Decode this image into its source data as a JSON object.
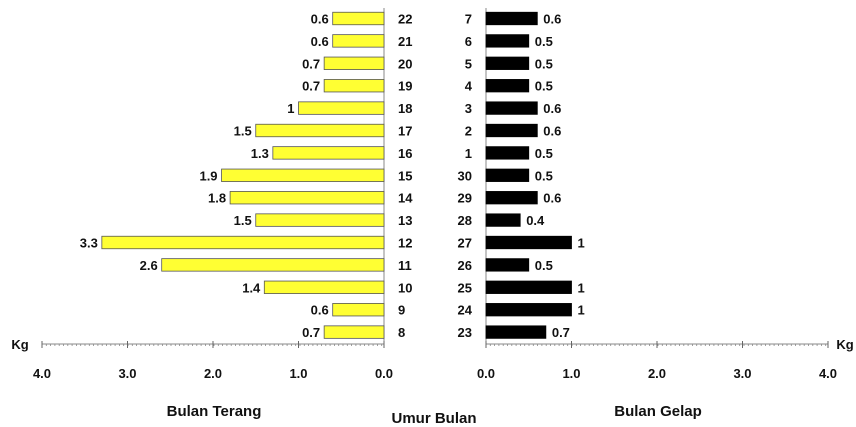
{
  "chart_data": [
    {
      "type": "bar",
      "orientation": "horizontal",
      "direction": "leftward",
      "title": "Bulan Terang",
      "unit_label": "Kg",
      "bar_color": "#ffff33",
      "xlim": [
        0,
        4
      ],
      "xticks": [
        "4.0",
        "3.0",
        "2.0",
        "1.0",
        "0.0"
      ],
      "categories": [
        "22",
        "21",
        "20",
        "19",
        "18",
        "17",
        "16",
        "15",
        "14",
        "13",
        "12",
        "11",
        "10",
        "9",
        "8"
      ],
      "values": [
        0.6,
        0.6,
        0.7,
        0.7,
        1,
        1.5,
        1.3,
        1.9,
        1.8,
        1.5,
        3.3,
        2.6,
        1.4,
        0.6,
        0.7
      ]
    },
    {
      "type": "bar",
      "orientation": "horizontal",
      "direction": "rightward",
      "title": "Bulan Gelap",
      "unit_label": "Kg",
      "bar_color": "#000000",
      "xlim": [
        0,
        4
      ],
      "xticks": [
        "0.0",
        "1.0",
        "2.0",
        "3.0",
        "4.0"
      ],
      "categories": [
        "7",
        "6",
        "5",
        "4",
        "3",
        "2",
        "1",
        "30",
        "29",
        "28",
        "27",
        "26",
        "25",
        "24",
        "23"
      ],
      "values": [
        0.6,
        0.5,
        0.5,
        0.5,
        0.6,
        0.6,
        0.5,
        0.5,
        0.6,
        0.4,
        1,
        0.5,
        1,
        1,
        0.7
      ]
    }
  ],
  "shared_axis_label": "Umur Bulan"
}
